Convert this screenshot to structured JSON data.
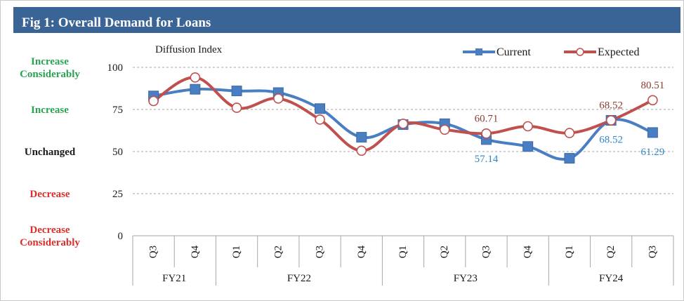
{
  "title": "Fig 1: Overall Demand for Loans",
  "chart_data": {
    "type": "line",
    "ylabel": "Diffusion Index",
    "ylim": [
      0,
      100
    ],
    "yticks": [
      0,
      25,
      50,
      75,
      100
    ],
    "y_scale_labels": [
      {
        "text": "Increase Considerably",
        "lines": [
          "Increase",
          "Considerably"
        ],
        "value": 100,
        "color": "#2aa152"
      },
      {
        "text": "Increase",
        "lines": [
          "Increase"
        ],
        "value": 75,
        "color": "#2aa152"
      },
      {
        "text": "Unchanged",
        "lines": [
          "Unchanged"
        ],
        "value": 50,
        "color": "#1a1a1a"
      },
      {
        "text": "Decrease",
        "lines": [
          "Decrease"
        ],
        "value": 25,
        "color": "#d9302c"
      },
      {
        "text": "Decrease Considerably",
        "lines": [
          "Decrease",
          "Considerably"
        ],
        "value": 0,
        "color": "#d9302c"
      }
    ],
    "categories": [
      "Q3",
      "Q4",
      "Q1",
      "Q2",
      "Q3",
      "Q4",
      "Q1",
      "Q2",
      "Q3",
      "Q4",
      "Q1",
      "Q2",
      "Q3"
    ],
    "groups": [
      {
        "label": "FY21",
        "count": 2
      },
      {
        "label": "FY22",
        "count": 4
      },
      {
        "label": "FY23",
        "count": 4
      },
      {
        "label": "FY24",
        "count": 3
      }
    ],
    "series": [
      {
        "name": "Current",
        "color": "#4a7ec2",
        "values": [
          83,
          87,
          86,
          85,
          75.5,
          58.5,
          66,
          66.5,
          57.14,
          53,
          46,
          68.52,
          61.29
        ]
      },
      {
        "name": "Expected",
        "color": "#c0504d",
        "values": [
          80,
          94,
          76,
          81.5,
          69,
          50.5,
          66.5,
          63,
          60.71,
          65,
          61,
          68.52,
          80.51
        ]
      }
    ],
    "data_labels": [
      {
        "series": "Current",
        "index": 8,
        "text": "57.14",
        "pos": "below",
        "color": "#2f87c5"
      },
      {
        "series": "Current",
        "index": 11,
        "text": "68.52",
        "pos": "below",
        "color": "#2f87c5"
      },
      {
        "series": "Current",
        "index": 12,
        "text": "61.29",
        "pos": "below",
        "color": "#2f87c5"
      },
      {
        "series": "Expected",
        "index": 8,
        "text": "60.71",
        "pos": "above",
        "color": "#8a3b32"
      },
      {
        "series": "Expected",
        "index": 11,
        "text": "68.52",
        "pos": "above",
        "color": "#8a3b32"
      },
      {
        "series": "Expected",
        "index": 12,
        "text": "80.51",
        "pos": "above",
        "color": "#8a3b32"
      }
    ],
    "grid": true,
    "legend_position": "top-right"
  }
}
